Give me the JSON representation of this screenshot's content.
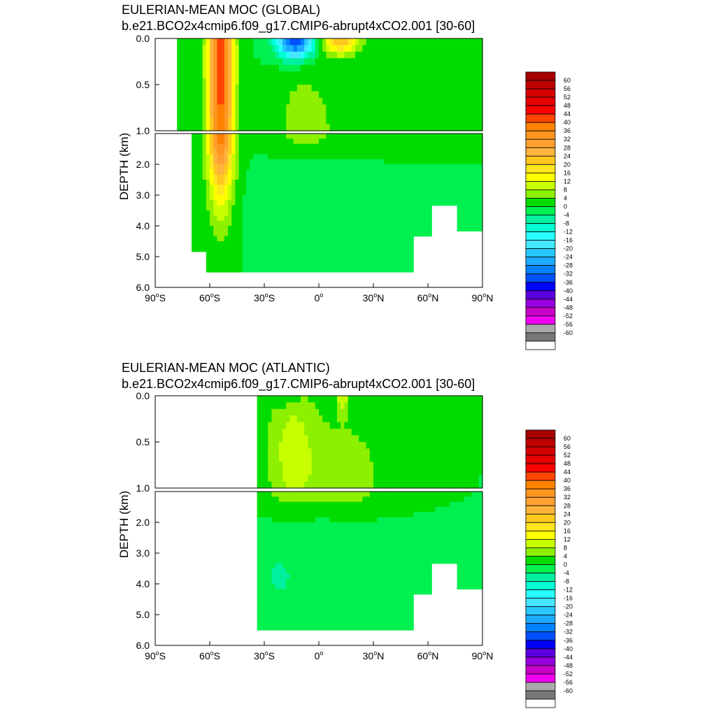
{
  "chart_data": [
    {
      "type": "contour",
      "title_line1": "EULERIAN-MEAN MOC (GLOBAL)",
      "title_line2": "b.e21.BCO2x4cmip6.f09_g17.CMIP6-abrupt4xCO2.001 [30-60]",
      "ylabel": "DEPTH (km)",
      "xlim": [
        -90,
        90
      ],
      "ylim": [
        0,
        6
      ],
      "depth_break_km": 1.0,
      "x_ticks": [
        {
          "value": -90,
          "deg": "90",
          "hemi": "S"
        },
        {
          "value": -60,
          "deg": "60",
          "hemi": "S"
        },
        {
          "value": -30,
          "deg": "30",
          "hemi": "S"
        },
        {
          "value": 0,
          "deg": "0",
          "hemi": ""
        },
        {
          "value": 30,
          "deg": "30",
          "hemi": "N"
        },
        {
          "value": 60,
          "deg": "60",
          "hemi": "N"
        },
        {
          "value": 90,
          "deg": "90",
          "hemi": "N"
        }
      ],
      "y_ticks_upper": [
        {
          "value": 0.0,
          "label": "0.0"
        },
        {
          "value": 0.5,
          "label": "0.5"
        },
        {
          "value": 1.0,
          "label": "1.0"
        }
      ],
      "y_ticks_lower": [
        {
          "value": 2.0,
          "label": "2.0"
        },
        {
          "value": 3.0,
          "label": "3.0"
        },
        {
          "value": 4.0,
          "label": "4.0"
        },
        {
          "value": 5.0,
          "label": "5.0"
        },
        {
          "value": 6.0,
          "label": "6.0"
        }
      ],
      "ocean_lat_range": [
        -78,
        90
      ],
      "features": [
        {
          "lat": -54,
          "depth": 0.25,
          "amp": 42,
          "slat": 7,
          "sdep": 2.8
        },
        {
          "lat": -13,
          "depth": 0.03,
          "amp": -36,
          "slat": 10,
          "sdep": 0.18
        },
        {
          "lat": 12,
          "depth": 0.03,
          "amp": 22,
          "slat": 10,
          "sdep": 0.15
        },
        {
          "lat": -8,
          "depth": 0.9,
          "amp": 6,
          "slat": 16,
          "sdep": 0.6
        },
        {
          "lat": 30,
          "depth": 1.2,
          "amp": 2,
          "slat": 35,
          "sdep": 0.6
        },
        {
          "lat": 10,
          "depth": 3.6,
          "amp": -3,
          "slat": 40,
          "sdep": 1.4
        }
      ]
    },
    {
      "type": "contour",
      "title_line1": "EULERIAN-MEAN MOC (ATLANTIC)",
      "title_line2": "b.e21.BCO2x4cmip6.f09_g17.CMIP6-abrupt4xCO2.001 [30-60]",
      "ylabel": "DEPTH (km)",
      "xlim": [
        -90,
        90
      ],
      "ylim": [
        0,
        6
      ],
      "depth_break_km": 1.0,
      "x_ticks": [
        {
          "value": -90,
          "deg": "90",
          "hemi": "S"
        },
        {
          "value": -60,
          "deg": "60",
          "hemi": "S"
        },
        {
          "value": -30,
          "deg": "30",
          "hemi": "S"
        },
        {
          "value": 0,
          "deg": "0",
          "hemi": ""
        },
        {
          "value": 30,
          "deg": "30",
          "hemi": "N"
        },
        {
          "value": 60,
          "deg": "60",
          "hemi": "N"
        },
        {
          "value": 90,
          "deg": "90",
          "hemi": "N"
        }
      ],
      "y_ticks_upper": [
        {
          "value": 0.0,
          "label": "0.0"
        },
        {
          "value": 0.5,
          "label": "0.5"
        },
        {
          "value": 1.0,
          "label": "1.0"
        }
      ],
      "y_ticks_lower": [
        {
          "value": 2.0,
          "label": "2.0"
        },
        {
          "value": 3.0,
          "label": "3.0"
        },
        {
          "value": 4.0,
          "label": "4.0"
        },
        {
          "value": 5.0,
          "label": "5.0"
        },
        {
          "value": 6.0,
          "label": "6.0"
        }
      ],
      "ocean_lat_range": [
        -34,
        90
      ],
      "features": [
        {
          "lat": -15,
          "depth": 0.6,
          "amp": 9,
          "slat": 14,
          "sdep": 0.8
        },
        {
          "lat": 15,
          "depth": 0.9,
          "amp": 6,
          "slat": 25,
          "sdep": 0.8
        },
        {
          "lat": -18,
          "depth": 0.03,
          "amp": -4,
          "slat": 8,
          "sdep": 0.1
        },
        {
          "lat": 13,
          "depth": 0.05,
          "amp": 10,
          "slat": 3,
          "sdep": 0.15
        },
        {
          "lat": 10,
          "depth": 3.6,
          "amp": -4,
          "slat": 35,
          "sdep": 1.5
        },
        {
          "lat": -22,
          "depth": 3.8,
          "amp": -5,
          "slat": 5,
          "sdep": 0.5
        }
      ]
    }
  ],
  "colorbar": {
    "labels": [
      "60",
      "56",
      "52",
      "48",
      "44",
      "40",
      "36",
      "32",
      "28",
      "24",
      "20",
      "16",
      "12",
      "8",
      "4",
      "0",
      "-4",
      "-8",
      "-12",
      "-16",
      "-20",
      "-24",
      "-28",
      "-32",
      "-36",
      "-40",
      "-44",
      "-48",
      "-52",
      "-56",
      "-60"
    ],
    "colors": [
      "#a50000",
      "#be0000",
      "#d20000",
      "#e60000",
      "#ff0000",
      "#ff4500",
      "#ff8200",
      "#ff9620",
      "#ffa030",
      "#ffb43c",
      "#ffc81e",
      "#ffe61e",
      "#ffff00",
      "#c8ff00",
      "#8cf000",
      "#00dc00",
      "#00f050",
      "#00f0a0",
      "#00ffd2",
      "#28ffff",
      "#46e6ff",
      "#28c8ff",
      "#1eaaff",
      "#0082ff",
      "#0050ff",
      "#0000ff",
      "#5a00dc",
      "#9600dc",
      "#c800c8",
      "#f000f0",
      "#aaaaaa",
      "#787878",
      "#ffffff"
    ]
  }
}
